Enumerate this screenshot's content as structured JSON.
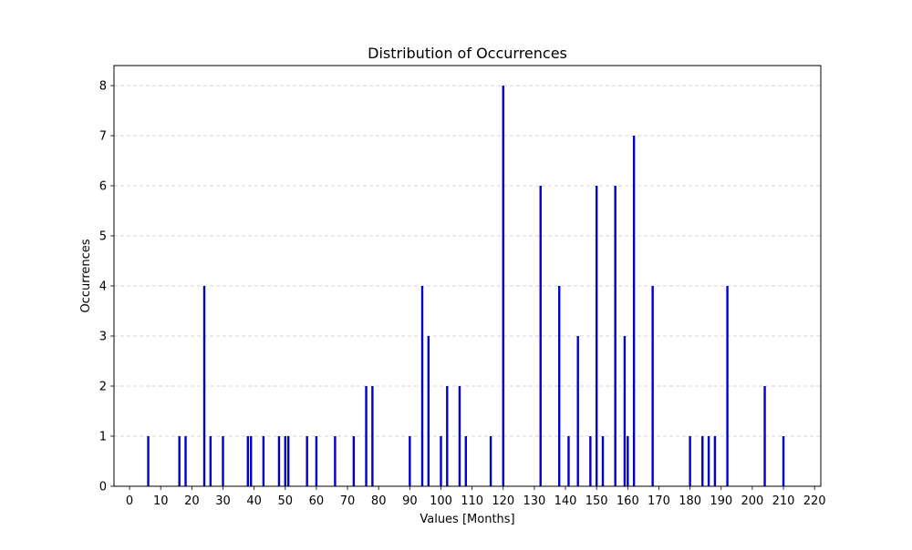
{
  "chart_data": {
    "type": "bar",
    "title": "Distribution of Occurrences",
    "xlabel": "Values [Months]",
    "ylabel": "Occurrences",
    "xlim": [
      -5,
      222
    ],
    "ylim": [
      0,
      8.4
    ],
    "x_ticks": [
      0,
      10,
      20,
      30,
      40,
      50,
      60,
      70,
      80,
      90,
      100,
      110,
      120,
      130,
      140,
      150,
      160,
      170,
      180,
      190,
      200,
      210,
      220
    ],
    "y_ticks": [
      0,
      1,
      2,
      3,
      4,
      5,
      6,
      7,
      8
    ],
    "grid": "horizontal dashed",
    "bar_color": "#0000cc",
    "grid_color": "#c8c8c8",
    "x": [
      6,
      16,
      18,
      24,
      26,
      30,
      38,
      39,
      43,
      48,
      50,
      51,
      57,
      60,
      66,
      72,
      76,
      78,
      90,
      94,
      96,
      100,
      102,
      106,
      108,
      116,
      120,
      132,
      138,
      141,
      144,
      148,
      150,
      152,
      156,
      159,
      160,
      162,
      168,
      180,
      184,
      186,
      188,
      192,
      204,
      210
    ],
    "values": [
      1,
      1,
      1,
      4,
      1,
      1,
      1,
      1,
      1,
      1,
      1,
      1,
      1,
      1,
      1,
      1,
      2,
      2,
      1,
      4,
      3,
      1,
      2,
      2,
      1,
      1,
      8,
      6,
      4,
      1,
      3,
      1,
      6,
      1,
      6,
      3,
      1,
      7,
      4,
      1,
      1,
      1,
      1,
      4,
      2,
      1
    ]
  }
}
